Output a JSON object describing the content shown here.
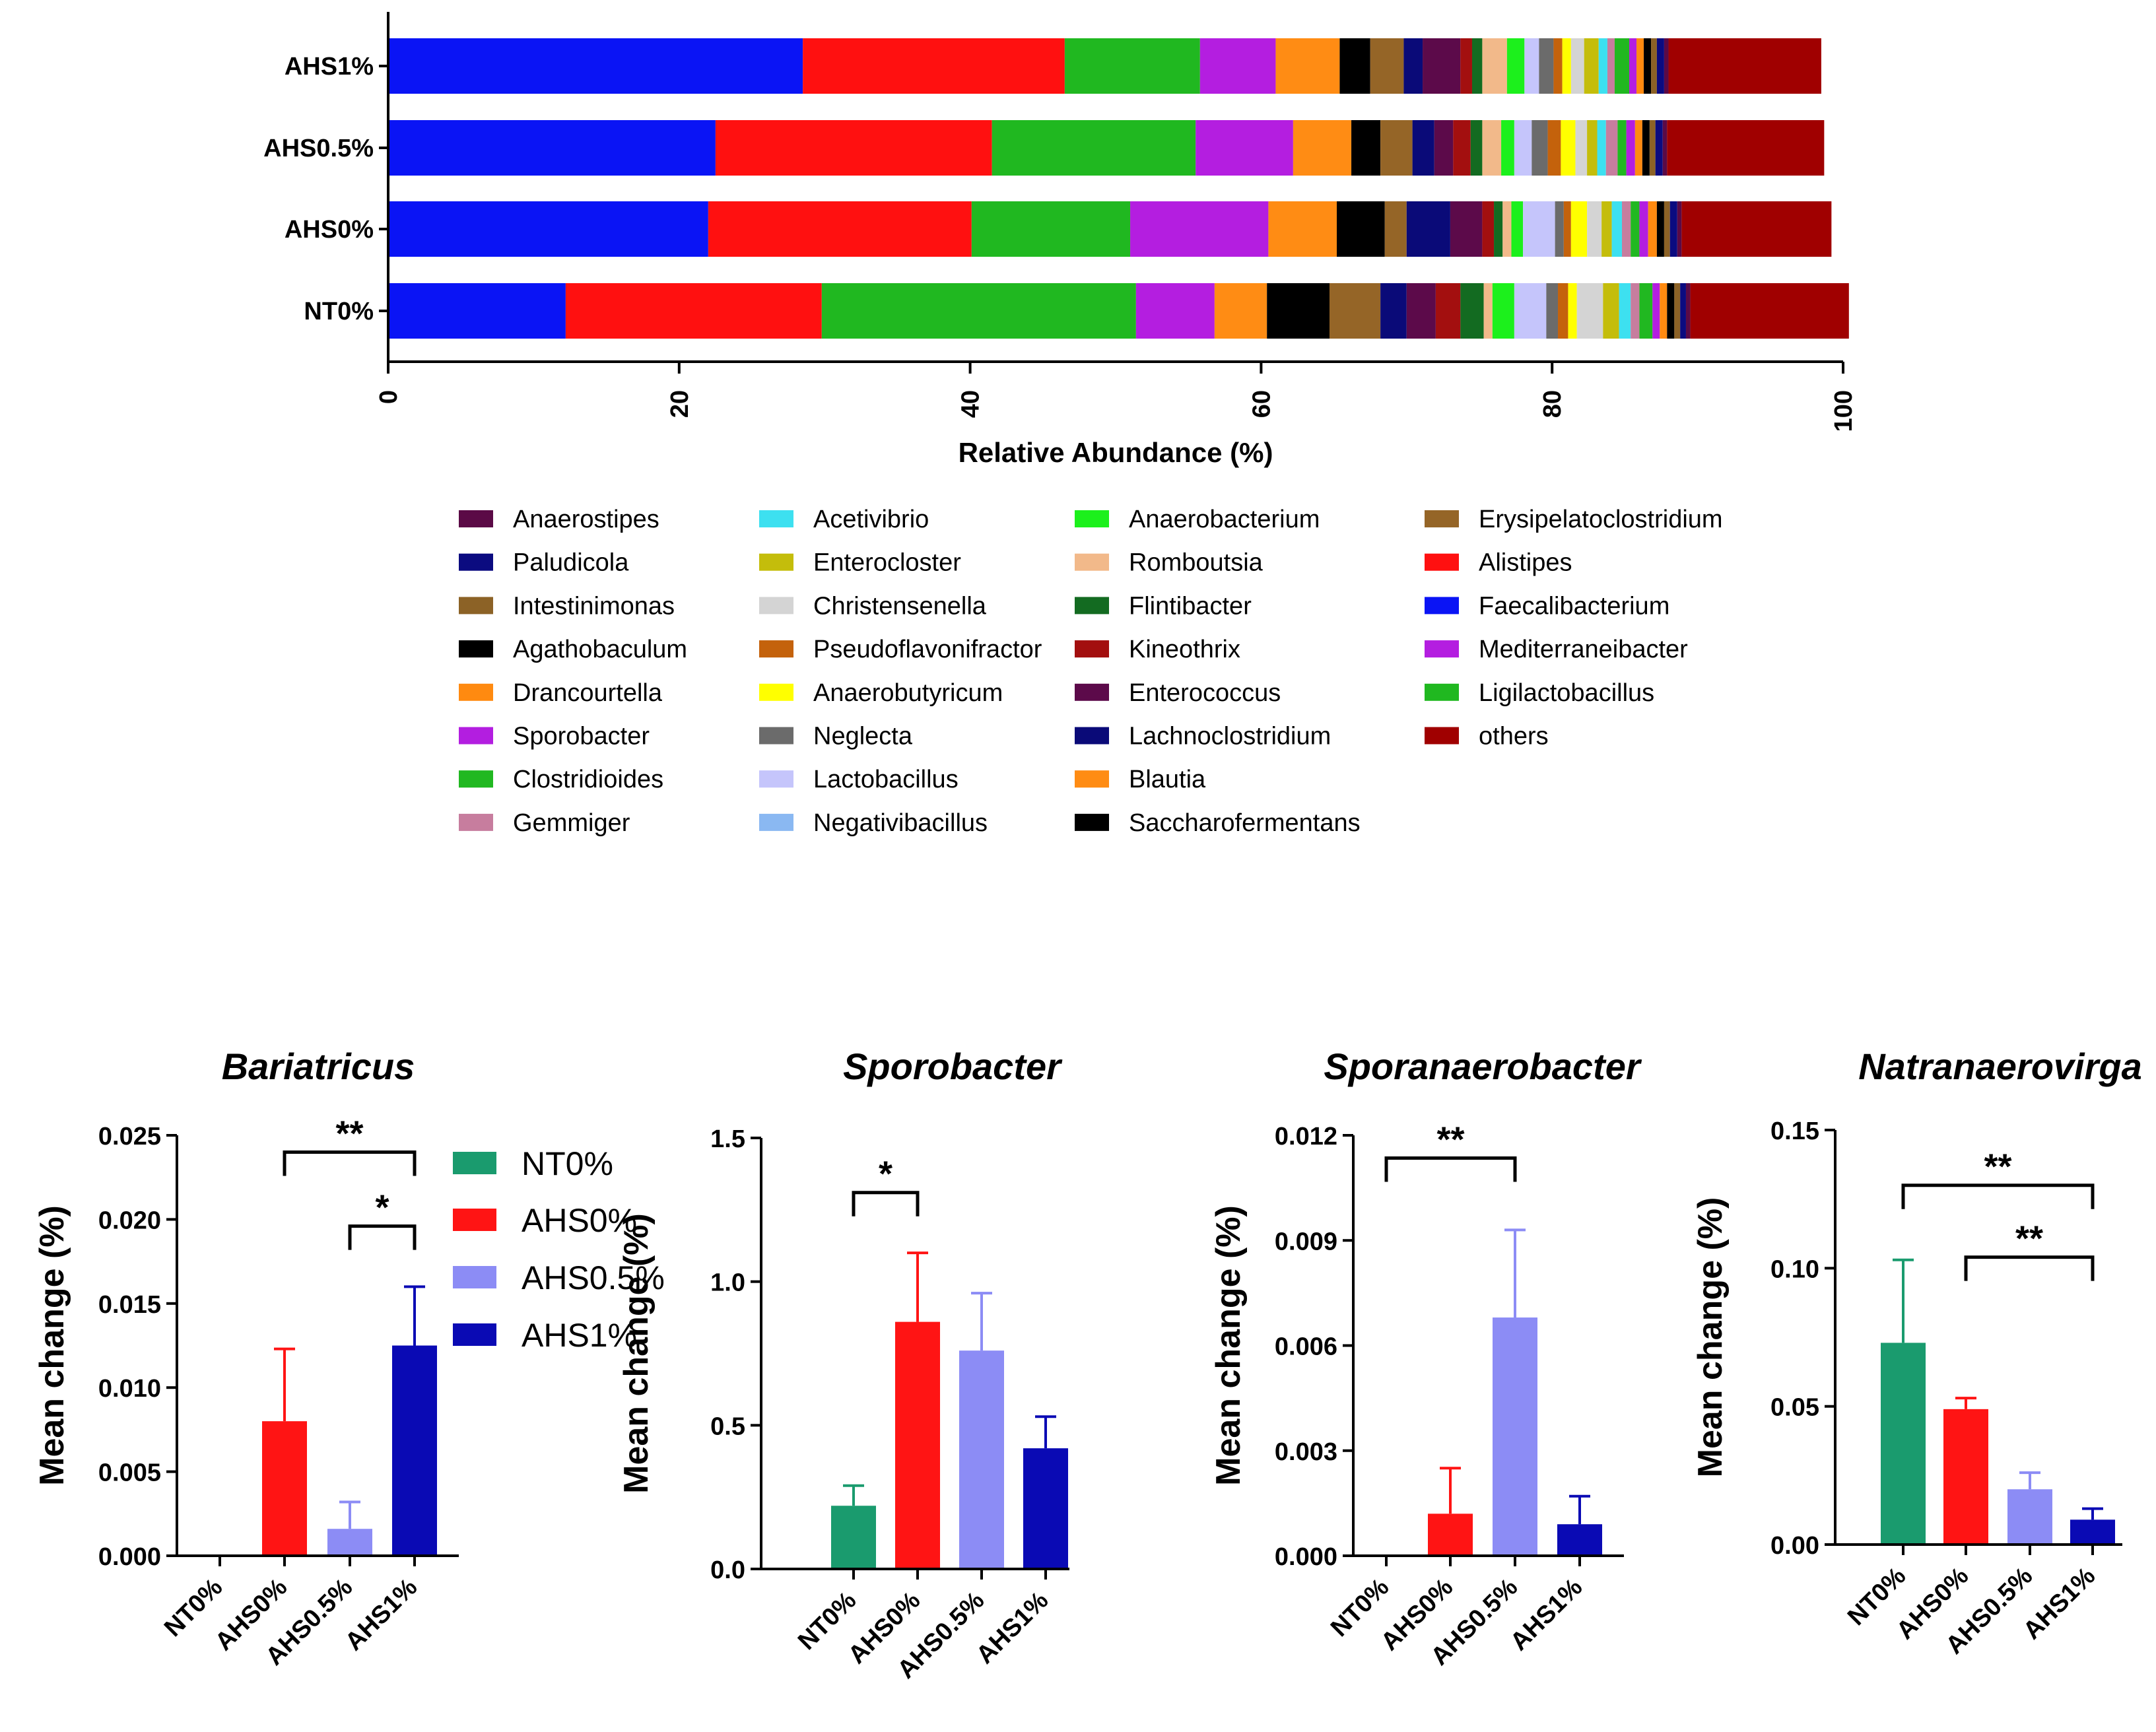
{
  "stacked_legend": [
    {
      "name": "Anaerostipes",
      "color": "#5b0a46"
    },
    {
      "name": "Paludicola",
      "color": "#0b0b80"
    },
    {
      "name": "Intestinimonas",
      "color": "#8c6226"
    },
    {
      "name": "Agathobaculum",
      "color": "#000000"
    },
    {
      "name": "Drancourtella",
      "color": "#ff8a10"
    },
    {
      "name": "Sporobacter",
      "color": "#b31ee0"
    },
    {
      "name": "Clostridioides",
      "color": "#21b821"
    },
    {
      "name": "Gemmiger",
      "color": "#c77d9e"
    },
    {
      "name": "Acetivibrio",
      "color": "#3de0f0"
    },
    {
      "name": "Enterocloster",
      "color": "#c4bd0b"
    },
    {
      "name": "Christensenella",
      "color": "#d4d4d4"
    },
    {
      "name": "Pseudoflavonifractor",
      "color": "#c4620c"
    },
    {
      "name": "Anaerobutyricum",
      "color": "#ffff00"
    },
    {
      "name": "Neglecta",
      "color": "#6b6b6b"
    },
    {
      "name": "Lactobacillus",
      "color": "#c5c5fb"
    },
    {
      "name": "Negativibacillus",
      "color": "#8ab8f2"
    },
    {
      "name": "Anaerobacterium",
      "color": "#1cf01c"
    },
    {
      "name": "Romboutsia",
      "color": "#f2b98a"
    },
    {
      "name": "Flintibacter",
      "color": "#136b21"
    },
    {
      "name": "Kineothrix",
      "color": "#a30f0f"
    },
    {
      "name": "Enterococcus",
      "color": "#5c0a4a"
    },
    {
      "name": "Lachnoclostridium",
      "color": "#0a0a78"
    },
    {
      "name": "Blautia",
      "color": "#ff8c14"
    },
    {
      "name": "Saccharofermentans",
      "color": "#000000"
    },
    {
      "name": "Erysipelatoclostridium",
      "color": "#956527"
    },
    {
      "name": "Alistipes",
      "color": "#ff1010"
    },
    {
      "name": "Faecalibacterium",
      "color": "#0a14f5"
    },
    {
      "name": "Mediterraneibacter",
      "color": "#b41ee0"
    },
    {
      "name": "Ligilactobacillus",
      "color": "#20b820"
    },
    {
      "name": "others",
      "color": "#a00000"
    }
  ],
  "group_colors": {
    "NT0%": "#1a9b6e",
    "AHS0%": "#ff1414",
    "AHS0.5%": "#8c8cf5",
    "AHS1%": "#0a0ab4"
  },
  "chart_data": [
    {
      "type": "bar",
      "orientation": "horizontal",
      "stacked": true,
      "xlabel": "Relative Abundance (%)",
      "xlim": [
        0,
        100
      ],
      "xticks": [
        0,
        20,
        40,
        60,
        80,
        100
      ],
      "categories": [
        "AHS1%",
        "AHS0.5%",
        "AHS0%",
        "NT0%"
      ],
      "segments": {
        "AHS1%": [
          [
            "Faecalibacterium",
            28.5
          ],
          [
            "Alistipes",
            18
          ],
          [
            "Ligilactobacillus",
            9.3
          ],
          [
            "Mediterraneibacter",
            5.2
          ],
          [
            "Blautia",
            4.4
          ],
          [
            "Saccharofermentans",
            2.1
          ],
          [
            "Erysipelatoclostridium",
            2.3
          ],
          [
            "Lachnoclostridium",
            1.3
          ],
          [
            "Enterococcus",
            2.6
          ],
          [
            "Kineothrix",
            0.8
          ],
          [
            "Flintibacter",
            0.7
          ],
          [
            "Romboutsia",
            1.7
          ],
          [
            "Anaerobacterium",
            1.2
          ],
          [
            "Lactobacillus",
            1
          ],
          [
            "Neglecta",
            1
          ],
          [
            "Pseudoflavonifractor",
            0.6
          ],
          [
            "Anaerobutyricum",
            0.6
          ],
          [
            "Christensenella",
            0.9
          ],
          [
            "Enterocloster",
            1
          ],
          [
            "Acetivibrio",
            0.6
          ],
          [
            "Gemmiger",
            0.5
          ],
          [
            "Clostridioides",
            1
          ],
          [
            "Sporobacter",
            0.5
          ],
          [
            "Drancourtella",
            0.5
          ],
          [
            "Agathobaculum",
            0.5
          ],
          [
            "Intestinimonas",
            0.4
          ],
          [
            "Paludicola",
            0.5
          ],
          [
            "Anaerostipes",
            0.3
          ],
          [
            "others",
            10.5
          ]
        ],
        "AHS0.5%": [
          [
            "Faecalibacterium",
            22.5
          ],
          [
            "Alistipes",
            19
          ],
          [
            "Ligilactobacillus",
            14
          ],
          [
            "Mediterraneibacter",
            6.7
          ],
          [
            "Blautia",
            4
          ],
          [
            "Saccharofermentans",
            2
          ],
          [
            "Erysipelatoclostridium",
            2.2
          ],
          [
            "Lachnoclostridium",
            1.5
          ],
          [
            "Enterococcus",
            1.3
          ],
          [
            "Kineothrix",
            1.2
          ],
          [
            "Flintibacter",
            0.8
          ],
          [
            "Romboutsia",
            1.3
          ],
          [
            "Anaerobacterium",
            0.9
          ],
          [
            "Lactobacillus",
            1.2
          ],
          [
            "Neglecta",
            1.1
          ],
          [
            "Pseudoflavonifractor",
            0.9
          ],
          [
            "Anaerobutyricum",
            1
          ],
          [
            "Christensenella",
            0.8
          ],
          [
            "Enterocloster",
            0.7
          ],
          [
            "Acetivibrio",
            0.6
          ],
          [
            "Gemmiger",
            0.8
          ],
          [
            "Clostridioides",
            0.6
          ],
          [
            "Sporobacter",
            0.6
          ],
          [
            "Drancourtella",
            0.5
          ],
          [
            "Agathobaculum",
            0.5
          ],
          [
            "Intestinimonas",
            0.4
          ],
          [
            "Paludicola",
            0.5
          ],
          [
            "Anaerostipes",
            0.3
          ],
          [
            "others",
            10.8
          ]
        ],
        "AHS0%": [
          [
            "Faecalibacterium",
            22
          ],
          [
            "Alistipes",
            18.1
          ],
          [
            "Ligilactobacillus",
            10.9
          ],
          [
            "Mediterraneibacter",
            9.5
          ],
          [
            "Blautia",
            4.7
          ],
          [
            "Saccharofermentans",
            3.3
          ],
          [
            "Erysipelatoclostridium",
            1.5
          ],
          [
            "Lachnoclostridium",
            3
          ],
          [
            "Enterococcus",
            2.2
          ],
          [
            "Kineothrix",
            0.8
          ],
          [
            "Flintibacter",
            0.6
          ],
          [
            "Romboutsia",
            0.6
          ],
          [
            "Anaerobacterium",
            0.8
          ],
          [
            "Lactobacillus",
            2.2
          ],
          [
            "Neglecta",
            0.6
          ],
          [
            "Pseudoflavonifractor",
            0.5
          ],
          [
            "Anaerobutyricum",
            1.1
          ],
          [
            "Christensenella",
            1
          ],
          [
            "Enterocloster",
            0.7
          ],
          [
            "Acetivibrio",
            0.7
          ],
          [
            "Gemmiger",
            0.6
          ],
          [
            "Clostridioides",
            0.6
          ],
          [
            "Sporobacter",
            0.6
          ],
          [
            "Drancourtella",
            0.6
          ],
          [
            "Agathobaculum",
            0.5
          ],
          [
            "Intestinimonas",
            0.4
          ],
          [
            "Paludicola",
            0.5
          ],
          [
            "Anaerostipes",
            0.3
          ],
          [
            "others",
            10.3
          ]
        ],
        "NT0%": [
          [
            "Faecalibacterium",
            12.2
          ],
          [
            "Alistipes",
            17.6
          ],
          [
            "Ligilactobacillus",
            21.6
          ],
          [
            "Mediterraneibacter",
            5.4
          ],
          [
            "Blautia",
            3.6
          ],
          [
            "Saccharofermentans",
            4.3
          ],
          [
            "Erysipelatoclostridium",
            3.5
          ],
          [
            "Lachnoclostridium",
            1.8
          ],
          [
            "Enterococcus",
            2
          ],
          [
            "Kineothrix",
            1.7
          ],
          [
            "Flintibacter",
            1.6
          ],
          [
            "Romboutsia",
            0.6
          ],
          [
            "Anaerobacterium",
            1.5
          ],
          [
            "Lactobacillus",
            2.2
          ],
          [
            "Neglecta",
            0.8
          ],
          [
            "Pseudoflavonifractor",
            0.7
          ],
          [
            "Anaerobutyricum",
            0.6
          ],
          [
            "Christensenella",
            1.8
          ],
          [
            "Enterocloster",
            1.1
          ],
          [
            "Acetivibrio",
            0.8
          ],
          [
            "Gemmiger",
            0.6
          ],
          [
            "Clostridioides",
            0.9
          ],
          [
            "Sporobacter",
            0.5
          ],
          [
            "Drancourtella",
            0.5
          ],
          [
            "Agathobaculum",
            0.5
          ],
          [
            "Intestinimonas",
            0.4
          ],
          [
            "Paludicola",
            0.4
          ],
          [
            "Anaerostipes",
            0.3
          ],
          [
            "others",
            10.9
          ]
        ]
      }
    },
    {
      "type": "bar",
      "title": "Bariatricus",
      "ylabel": "Mean change (%)",
      "categories": [
        "NT0%",
        "AHS0%",
        "AHS0.5%",
        "AHS1%"
      ],
      "values": [
        0,
        0.008,
        0.0016,
        0.0125
      ],
      "errors": [
        0,
        0.0043,
        0.0016,
        0.0035
      ],
      "ylim": [
        0,
        0.025
      ],
      "yticks": [
        "0.000",
        "0.005",
        "0.010",
        "0.015",
        "0.020",
        "0.025"
      ],
      "significance": [
        {
          "from": "AHS0%",
          "to": "AHS1%",
          "label": "**",
          "y": 0.024
        },
        {
          "from": "AHS0.5%",
          "to": "AHS1%",
          "label": "*",
          "y": 0.0196
        }
      ]
    },
    {
      "type": "bar",
      "title": "Sporobacter",
      "ylabel": "Mean change (%)",
      "categories": [
        "NT0%",
        "AHS0%",
        "AHS0.5%",
        "AHS1%"
      ],
      "values": [
        0.22,
        0.86,
        0.76,
        0.42
      ],
      "errors": [
        0.07,
        0.24,
        0.2,
        0.11
      ],
      "ylim": [
        0,
        1.5
      ],
      "yticks": [
        "0.0",
        "0.5",
        "1.0",
        "1.5"
      ],
      "significance": [
        {
          "from": "NT0%",
          "to": "AHS0%",
          "label": "*",
          "y": 1.31
        }
      ]
    },
    {
      "type": "bar",
      "title": "Sporanaerobacter",
      "ylabel": "Mean change (%)",
      "categories": [
        "NT0%",
        "AHS0%",
        "AHS0.5%",
        "AHS1%"
      ],
      "values": [
        0,
        0.0012,
        0.0068,
        0.0009
      ],
      "errors": [
        0,
        0.0013,
        0.0025,
        0.0008
      ],
      "ylim": [
        0,
        0.012
      ],
      "yticks": [
        "0.000",
        "0.003",
        "0.006",
        "0.009",
        "0.012"
      ],
      "significance": [
        {
          "from": "NT0%",
          "to": "AHS0.5%",
          "label": "**",
          "y": 0.01135
        }
      ]
    },
    {
      "type": "bar",
      "title": "Natranaerovirga",
      "ylabel": "Mean change (%)",
      "categories": [
        "NT0%",
        "AHS0%",
        "AHS0.5%",
        "AHS1%"
      ],
      "values": [
        0.073,
        0.049,
        0.02,
        0.009
      ],
      "errors": [
        0.03,
        0.004,
        0.006,
        0.004
      ],
      "ylim": [
        0,
        0.15
      ],
      "yticks": [
        "0.00",
        "0.05",
        "0.10",
        "0.15"
      ],
      "significance": [
        {
          "from": "NT0%",
          "to": "AHS1%",
          "label": "**",
          "y": 0.13
        },
        {
          "from": "AHS0%",
          "to": "AHS1%",
          "label": "**",
          "y": 0.104
        }
      ]
    }
  ]
}
